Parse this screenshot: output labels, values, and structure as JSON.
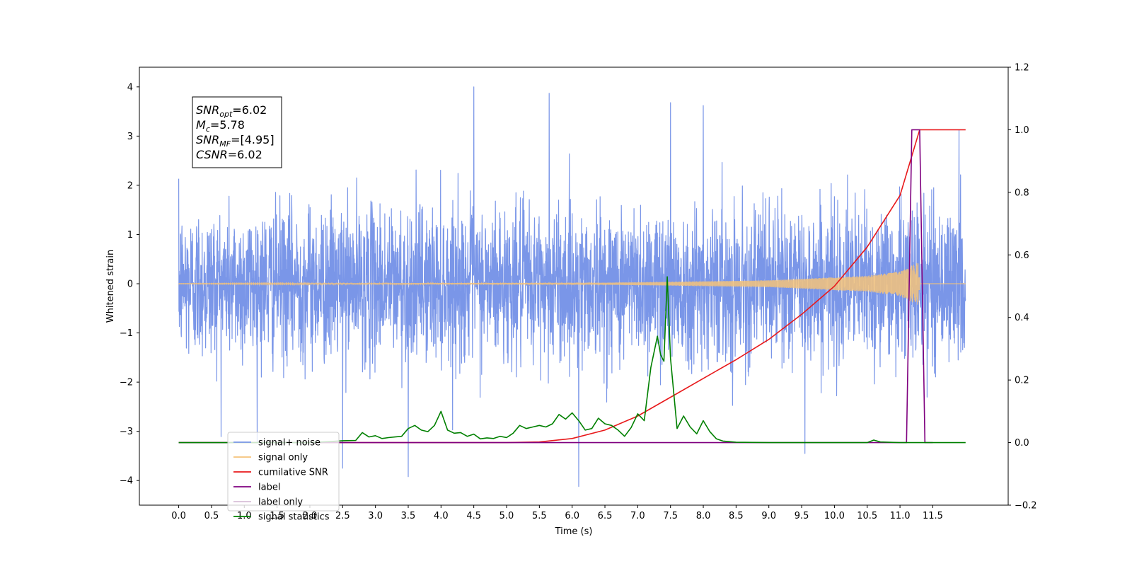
{
  "chart_data": {
    "type": "line",
    "title": "",
    "xlabel": "Time (s)",
    "ylabel": "Whitened strain",
    "ylabel_right": "",
    "xlim": [
      -0.6,
      12.65
    ],
    "ylim": [
      -4.5,
      4.4
    ],
    "ylim_right": [
      -0.2,
      1.2
    ],
    "x_ticks": [
      0.0,
      0.5,
      1.0,
      1.5,
      2.0,
      2.5,
      3.0,
      3.5,
      4.0,
      4.5,
      5.0,
      5.5,
      6.0,
      6.5,
      7.0,
      7.5,
      8.0,
      8.5,
      9.0,
      9.5,
      10.0,
      10.5,
      11.0,
      11.5
    ],
    "x_tick_labels": [
      "0.0",
      "0.5",
      "1.0",
      "1.5",
      "2.0",
      "2.5",
      "3.0",
      "3.5",
      "4.0",
      "4.5",
      "5.0",
      "5.5",
      "6.0",
      "6.5",
      "7.0",
      "7.5",
      "8.0",
      "8.5",
      "9.0",
      "9.5",
      "10.0",
      "10.5",
      "11.0",
      "11.5"
    ],
    "y_ticks": [
      -4,
      -3,
      -2,
      -1,
      0,
      1,
      2,
      3,
      4
    ],
    "y_tick_labels": [
      "−4",
      "−3",
      "−2",
      "−1",
      "0",
      "1",
      "2",
      "3",
      "4"
    ],
    "y_ticks_right": [
      -0.2,
      0.0,
      0.2,
      0.4,
      0.6,
      0.8,
      1.0,
      1.2
    ],
    "y_tick_labels_right": [
      "−0.2",
      "0.0",
      "0.2",
      "0.4",
      "0.6",
      "0.8",
      "1.0",
      "1.2"
    ],
    "grid": false,
    "legend_position": "lower-left",
    "annotation": {
      "lines": [
        {
          "symbol": "SNR",
          "sub": "opt",
          "value": "=6.02"
        },
        {
          "symbol": "M",
          "sub": "c",
          "value": "=5.78"
        },
        {
          "symbol": "SNR",
          "sub": "MF",
          "value": "=[4.95]"
        },
        {
          "symbol": "CSNR",
          "sub": "",
          "value": "=6.02"
        }
      ]
    },
    "series": [
      {
        "name": "signal+ noise",
        "axis": "left",
        "color": "#7a96e8",
        "style": "noise",
        "x_range": [
          0.0,
          12.0
        ],
        "typical_amplitude": 2.0,
        "peaks": [
          {
            "x": 4.5,
            "y": 4.0
          },
          {
            "x": 5.65,
            "y": 3.87
          },
          {
            "x": 7.5,
            "y": 3.68
          },
          {
            "x": 8.0,
            "y": 3.62
          },
          {
            "x": 3.5,
            "y": -3.92
          },
          {
            "x": 6.1,
            "y": -4.12
          },
          {
            "x": 2.5,
            "y": -3.75
          },
          {
            "x": 9.55,
            "y": -3.45
          },
          {
            "x": 11.9,
            "y": 3.12
          }
        ]
      },
      {
        "name": "signal only",
        "axis": "left",
        "color": "#f5c37a",
        "style": "chirp",
        "x_range": [
          0.0,
          12.0
        ],
        "merger_x": 11.3,
        "amplitude_at_x": [
          [
            0.0,
            0.002
          ],
          [
            6.5,
            0.02
          ],
          [
            9.0,
            0.07
          ],
          [
            10.5,
            0.16
          ],
          [
            11.0,
            0.25
          ],
          [
            11.3,
            0.45
          ]
        ]
      },
      {
        "name": "cumilative SNR",
        "axis": "right",
        "color": "#e8191b",
        "style": "line",
        "x": [
          0.0,
          4.0,
          5.0,
          5.5,
          6.0,
          6.5,
          7.0,
          7.5,
          8.0,
          8.5,
          9.0,
          9.5,
          10.0,
          10.5,
          11.0,
          11.3,
          12.0
        ],
        "y": [
          0.0,
          0.0,
          0.0,
          0.002,
          0.013,
          0.04,
          0.085,
          0.145,
          0.205,
          0.265,
          0.33,
          0.41,
          0.5,
          0.625,
          0.79,
          1.0,
          1.0
        ]
      },
      {
        "name": "label",
        "axis": "right",
        "color": "#7f007f",
        "style": "line",
        "x": [
          0.0,
          11.1,
          11.18,
          11.3,
          11.38,
          11.5
        ],
        "y": [
          0.0,
          0.0,
          1.0,
          1.0,
          0.0,
          0.0
        ]
      },
      {
        "name": "label only",
        "axis": "right",
        "color": "#d8bfd8",
        "style": "line",
        "x": [],
        "y": []
      },
      {
        "name": "signal statistics",
        "axis": "right",
        "color": "#008000",
        "style": "line",
        "x": [
          0.0,
          0.5,
          1.0,
          1.5,
          2.0,
          2.3,
          2.5,
          2.7,
          2.8,
          2.9,
          3.0,
          3.1,
          3.2,
          3.3,
          3.4,
          3.5,
          3.6,
          3.7,
          3.8,
          3.9,
          4.0,
          4.1,
          4.2,
          4.3,
          4.4,
          4.5,
          4.6,
          4.7,
          4.8,
          4.9,
          5.0,
          5.1,
          5.2,
          5.3,
          5.4,
          5.5,
          5.6,
          5.7,
          5.8,
          5.9,
          6.0,
          6.1,
          6.2,
          6.3,
          6.4,
          6.5,
          6.6,
          6.7,
          6.8,
          6.9,
          7.0,
          7.1,
          7.2,
          7.3,
          7.35,
          7.4,
          7.45,
          7.5,
          7.6,
          7.7,
          7.8,
          7.9,
          8.0,
          8.1,
          8.2,
          8.3,
          8.5,
          9.0,
          10.0,
          10.5,
          10.6,
          10.7,
          11.0,
          11.5,
          12.0
        ],
        "y": [
          0.0,
          0.0,
          0.0,
          0.0,
          0.0,
          0.003,
          0.006,
          0.007,
          0.032,
          0.018,
          0.022,
          0.013,
          0.016,
          0.018,
          0.02,
          0.045,
          0.055,
          0.04,
          0.035,
          0.055,
          0.1,
          0.04,
          0.03,
          0.032,
          0.02,
          0.027,
          0.012,
          0.015,
          0.013,
          0.02,
          0.016,
          0.03,
          0.055,
          0.045,
          0.05,
          0.055,
          0.05,
          0.06,
          0.09,
          0.075,
          0.095,
          0.07,
          0.04,
          0.045,
          0.078,
          0.06,
          0.055,
          0.04,
          0.02,
          0.048,
          0.092,
          0.07,
          0.24,
          0.34,
          0.28,
          0.26,
          0.53,
          0.27,
          0.045,
          0.085,
          0.05,
          0.028,
          0.07,
          0.035,
          0.012,
          0.005,
          0.001,
          0.0,
          0.0,
          0.0,
          0.008,
          0.002,
          0.0,
          0.0,
          0.0
        ]
      }
    ]
  }
}
